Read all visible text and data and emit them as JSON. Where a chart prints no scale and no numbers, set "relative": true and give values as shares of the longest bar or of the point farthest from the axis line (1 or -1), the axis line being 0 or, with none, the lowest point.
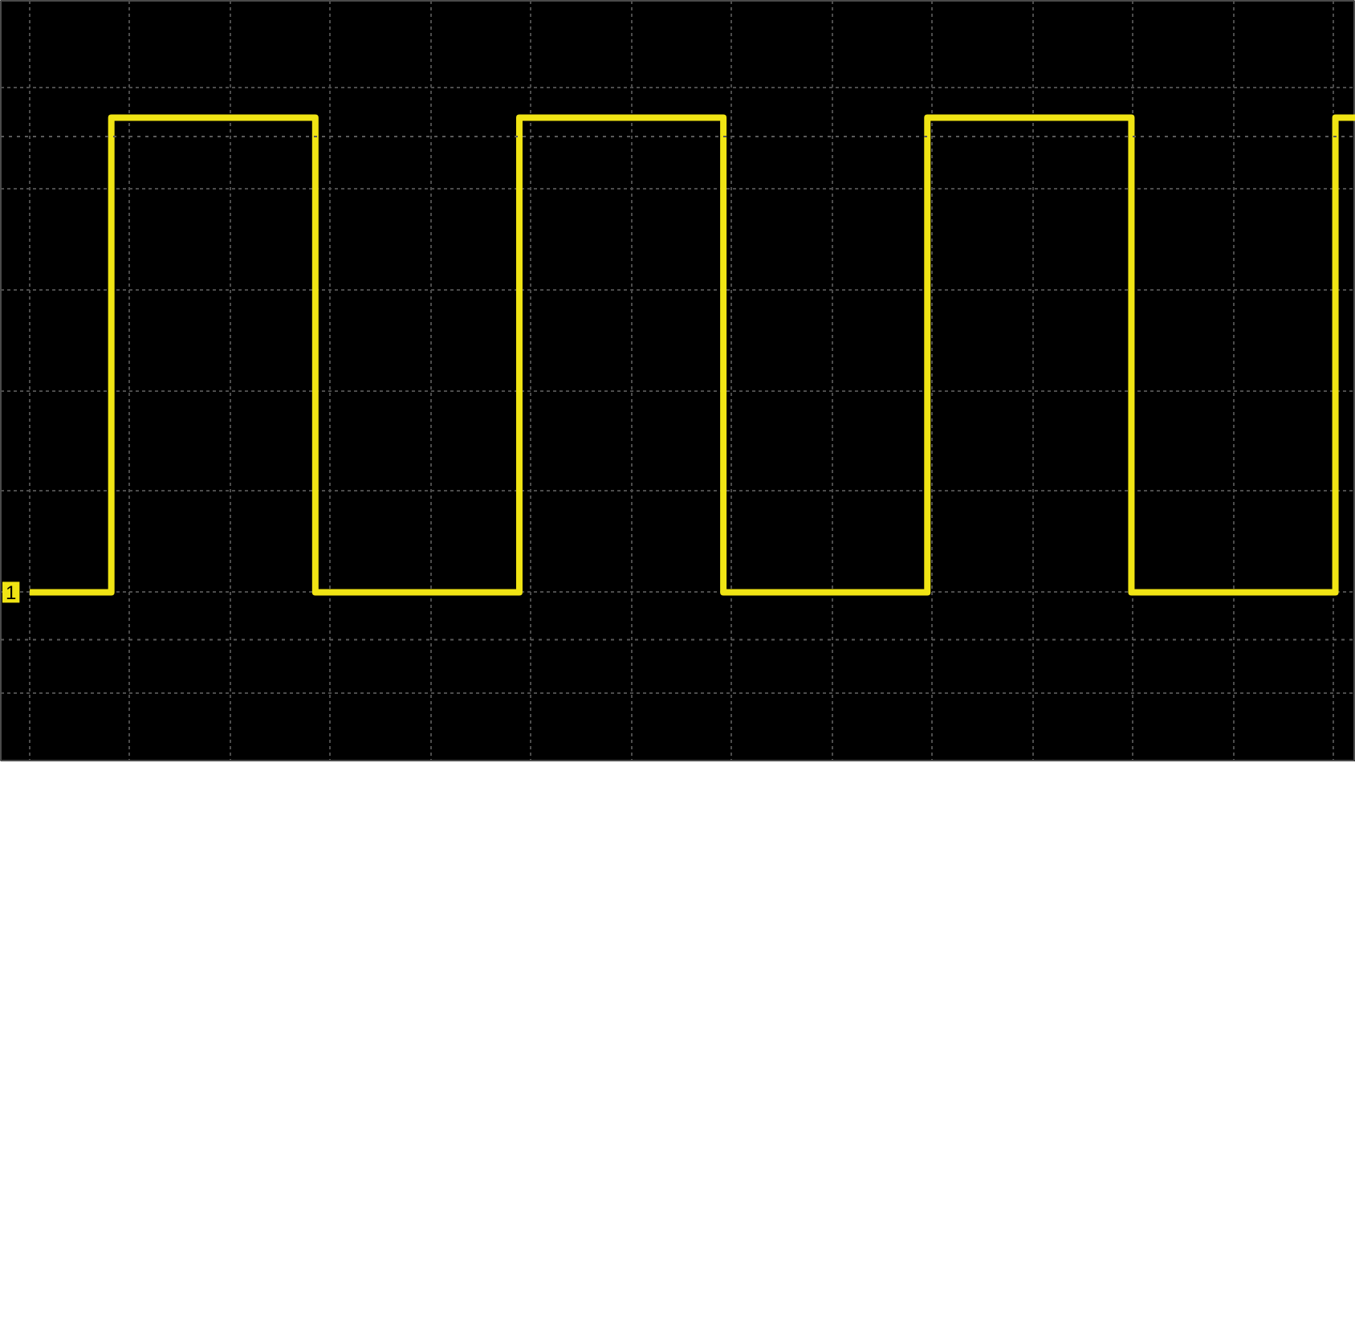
{
  "chart_data": {
    "type": "step",
    "relative": true,
    "categories": [
      null,
      null,
      null,
      null,
      null,
      null,
      null,
      null,
      null,
      null,
      null,
      null,
      null,
      null,
      null,
      null,
      null,
      null,
      null,
      null,
      null,
      null,
      null,
      null,
      null,
      null,
      null,
      null,
      null,
      null,
      null,
      null,
      null,
      null,
      null,
      null,
      null,
      null,
      null,
      null,
      null,
      null,
      null,
      null,
      null,
      null,
      null,
      null,
      null,
      null,
      null,
      null,
      null,
      null,
      null,
      null,
      null,
      null,
      null,
      null,
      null,
      null,
      null,
      null,
      null,
      null
    ],
    "series": [
      {
        "color": "#f0e414",
        "values": [
          0,
          0,
          0,
          0,
          1,
          1,
          1,
          1,
          1,
          1,
          1,
          1,
          1,
          1,
          0,
          0,
          0,
          0,
          0,
          0,
          0,
          0,
          0,
          0,
          1,
          1,
          1,
          1,
          1,
          1,
          1,
          1,
          1,
          1,
          0,
          0,
          0,
          0,
          0,
          0,
          0,
          0,
          0,
          0,
          1,
          1,
          1,
          1,
          1,
          1,
          1,
          1,
          1,
          1,
          0,
          0,
          0,
          0,
          0,
          0,
          0,
          0,
          0,
          0,
          1,
          1
        ]
      }
    ],
    "grid": true,
    "ref_lines": [
      {
        "axis": "y",
        "value": 0.96,
        "line_style": "dotted",
        "color": "#5a5a5a"
      },
      {
        "axis": "y",
        "value": -0.1,
        "line_style": "dotted",
        "color": "#5a5a5a"
      }
    ],
    "annotations": [
      {
        "text": "1",
        "y": 0
      }
    ]
  }
}
